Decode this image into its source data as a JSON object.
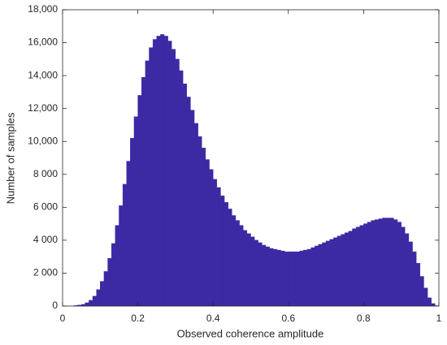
{
  "chart_data": {
    "type": "histogram",
    "x_label": "Observed coherence amplitude",
    "y_label": "Number of samples",
    "color": "#3b2aa3",
    "bins": [
      0,
      0.01,
      0.02,
      0.03,
      0.04,
      0.05,
      0.06,
      0.07,
      0.08,
      0.09,
      0.1,
      0.11,
      0.12,
      0.13,
      0.14,
      0.15,
      0.16,
      0.17,
      0.18,
      0.19,
      0.2,
      0.21,
      0.22,
      0.23,
      0.24,
      0.25,
      0.26,
      0.27,
      0.28,
      0.29,
      0.3,
      0.31,
      0.32,
      0.33,
      0.34,
      0.35,
      0.36,
      0.37,
      0.38,
      0.39,
      0.4,
      0.41,
      0.42,
      0.43,
      0.44,
      0.45,
      0.46,
      0.47,
      0.48,
      0.49,
      0.5,
      0.51,
      0.52,
      0.53,
      0.54,
      0.55,
      0.56,
      0.57,
      0.58,
      0.59,
      0.6,
      0.61,
      0.62,
      0.63,
      0.64,
      0.65,
      0.66,
      0.67,
      0.68,
      0.69,
      0.7,
      0.71,
      0.72,
      0.73,
      0.74,
      0.75,
      0.76,
      0.77,
      0.78,
      0.79,
      0.8,
      0.81,
      0.82,
      0.83,
      0.84,
      0.85,
      0.86,
      0.87,
      0.88,
      0.89,
      0.9,
      0.91,
      0.92,
      0.93,
      0.94,
      0.95,
      0.96,
      0.97,
      0.98,
      0.99,
      1
    ],
    "values": [
      0,
      0,
      0,
      30,
      60,
      100,
      200,
      350,
      600,
      1000,
      1500,
      2100,
      2900,
      3800,
      4900,
      6100,
      7400,
      8800,
      10200,
      11500,
      12800,
      13900,
      14900,
      15700,
      16200,
      16400,
      16500,
      16400,
      16100,
      15600,
      15000,
      14300,
      13500,
      12700,
      11900,
      11100,
      10300,
      9600,
      8900,
      8300,
      7700,
      7200,
      6700,
      6300,
      5900,
      5500,
      5200,
      4900,
      4600,
      4400,
      4200,
      4000,
      3850,
      3700,
      3600,
      3500,
      3450,
      3400,
      3350,
      3300,
      3300,
      3300,
      3300,
      3350,
      3400,
      3450,
      3550,
      3650,
      3750,
      3850,
      3950,
      4050,
      4150,
      4250,
      4350,
      4450,
      4550,
      4700,
      4800,
      4900,
      5000,
      5100,
      5200,
      5250,
      5300,
      5350,
      5350,
      5350,
      5250,
      5100,
      4800,
      4400,
      3900,
      3300,
      2600,
      1800,
      1100,
      500,
      150,
      20
    ],
    "xlim": [
      0,
      1
    ],
    "xticks": [
      0,
      0.2,
      0.4,
      0.6,
      0.8,
      1
    ],
    "ylim": [
      0,
      18000
    ],
    "yticks": [
      0,
      {
        "value": 2000,
        "label": "2 000"
      },
      {
        "value": 4000,
        "label": "4 000"
      },
      {
        "value": 6000,
        "label": "6 000"
      },
      {
        "value": 8000,
        "label": "8 000"
      },
      {
        "value": 10000,
        "label": "10,000"
      },
      {
        "value": 12000,
        "label": "12,000"
      },
      {
        "value": 14000,
        "label": "14,000"
      },
      {
        "value": 16000,
        "label": "16,000"
      },
      {
        "value": 18000,
        "label": "18,000"
      }
    ]
  }
}
